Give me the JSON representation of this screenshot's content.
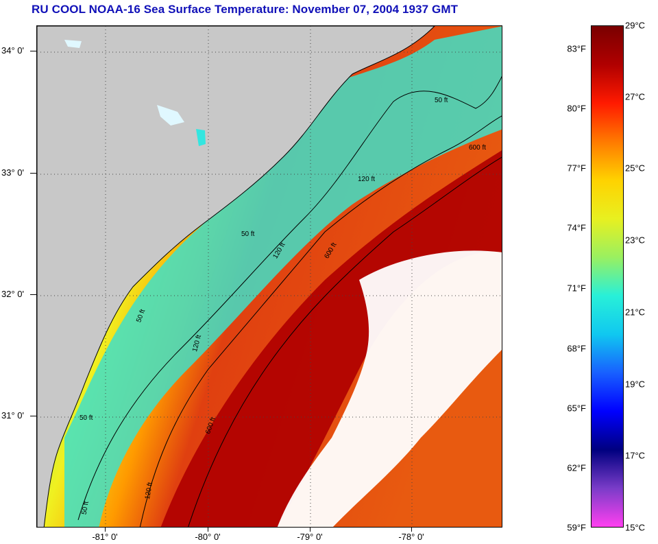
{
  "title": "RU COOL  NOAA-16  Sea Surface Temperature:  November 07, 2004 1937 GMT",
  "map": {
    "lat_labels": [
      "34° 0'",
      "33° 0'",
      "32° 0'",
      "31° 0'"
    ],
    "lon_labels": [
      "-81° 0'",
      "-80° 0'",
      "-79° 0'",
      "-78° 0'"
    ],
    "contour_labels": [
      "50 ft",
      "120 ft",
      "600 ft",
      "50 ft",
      "120 ft",
      "600 ft",
      "50 ft",
      "120 ft",
      "600 ft",
      "50 ft",
      "120 ft",
      "50 ft"
    ],
    "colors": {
      "land": "#c8c8c8",
      "cloud": "#ffffff",
      "cool_water": "#33e6e0",
      "mid_water": "#f0f020",
      "warm_water": "#e04010",
      "hot_water": "#b00000"
    }
  },
  "colorbar": {
    "fahrenheit_labels": [
      "83°F",
      "80°F",
      "77°F",
      "74°F",
      "71°F",
      "68°F",
      "65°F",
      "62°F",
      "59°F"
    ],
    "celsius_labels": [
      "29°C",
      "27°C",
      "25°C",
      "23°C",
      "21°C",
      "19°C",
      "17°C",
      "15°C"
    ],
    "stops": [
      "#7a0000",
      "#b00000",
      "#ff1a00",
      "#ff7a00",
      "#ffd200",
      "#e8f020",
      "#9af060",
      "#28f0d8",
      "#10c8f0",
      "#1860ff",
      "#0000ff",
      "#000080",
      "#7a3cc8",
      "#ff40f0"
    ]
  }
}
